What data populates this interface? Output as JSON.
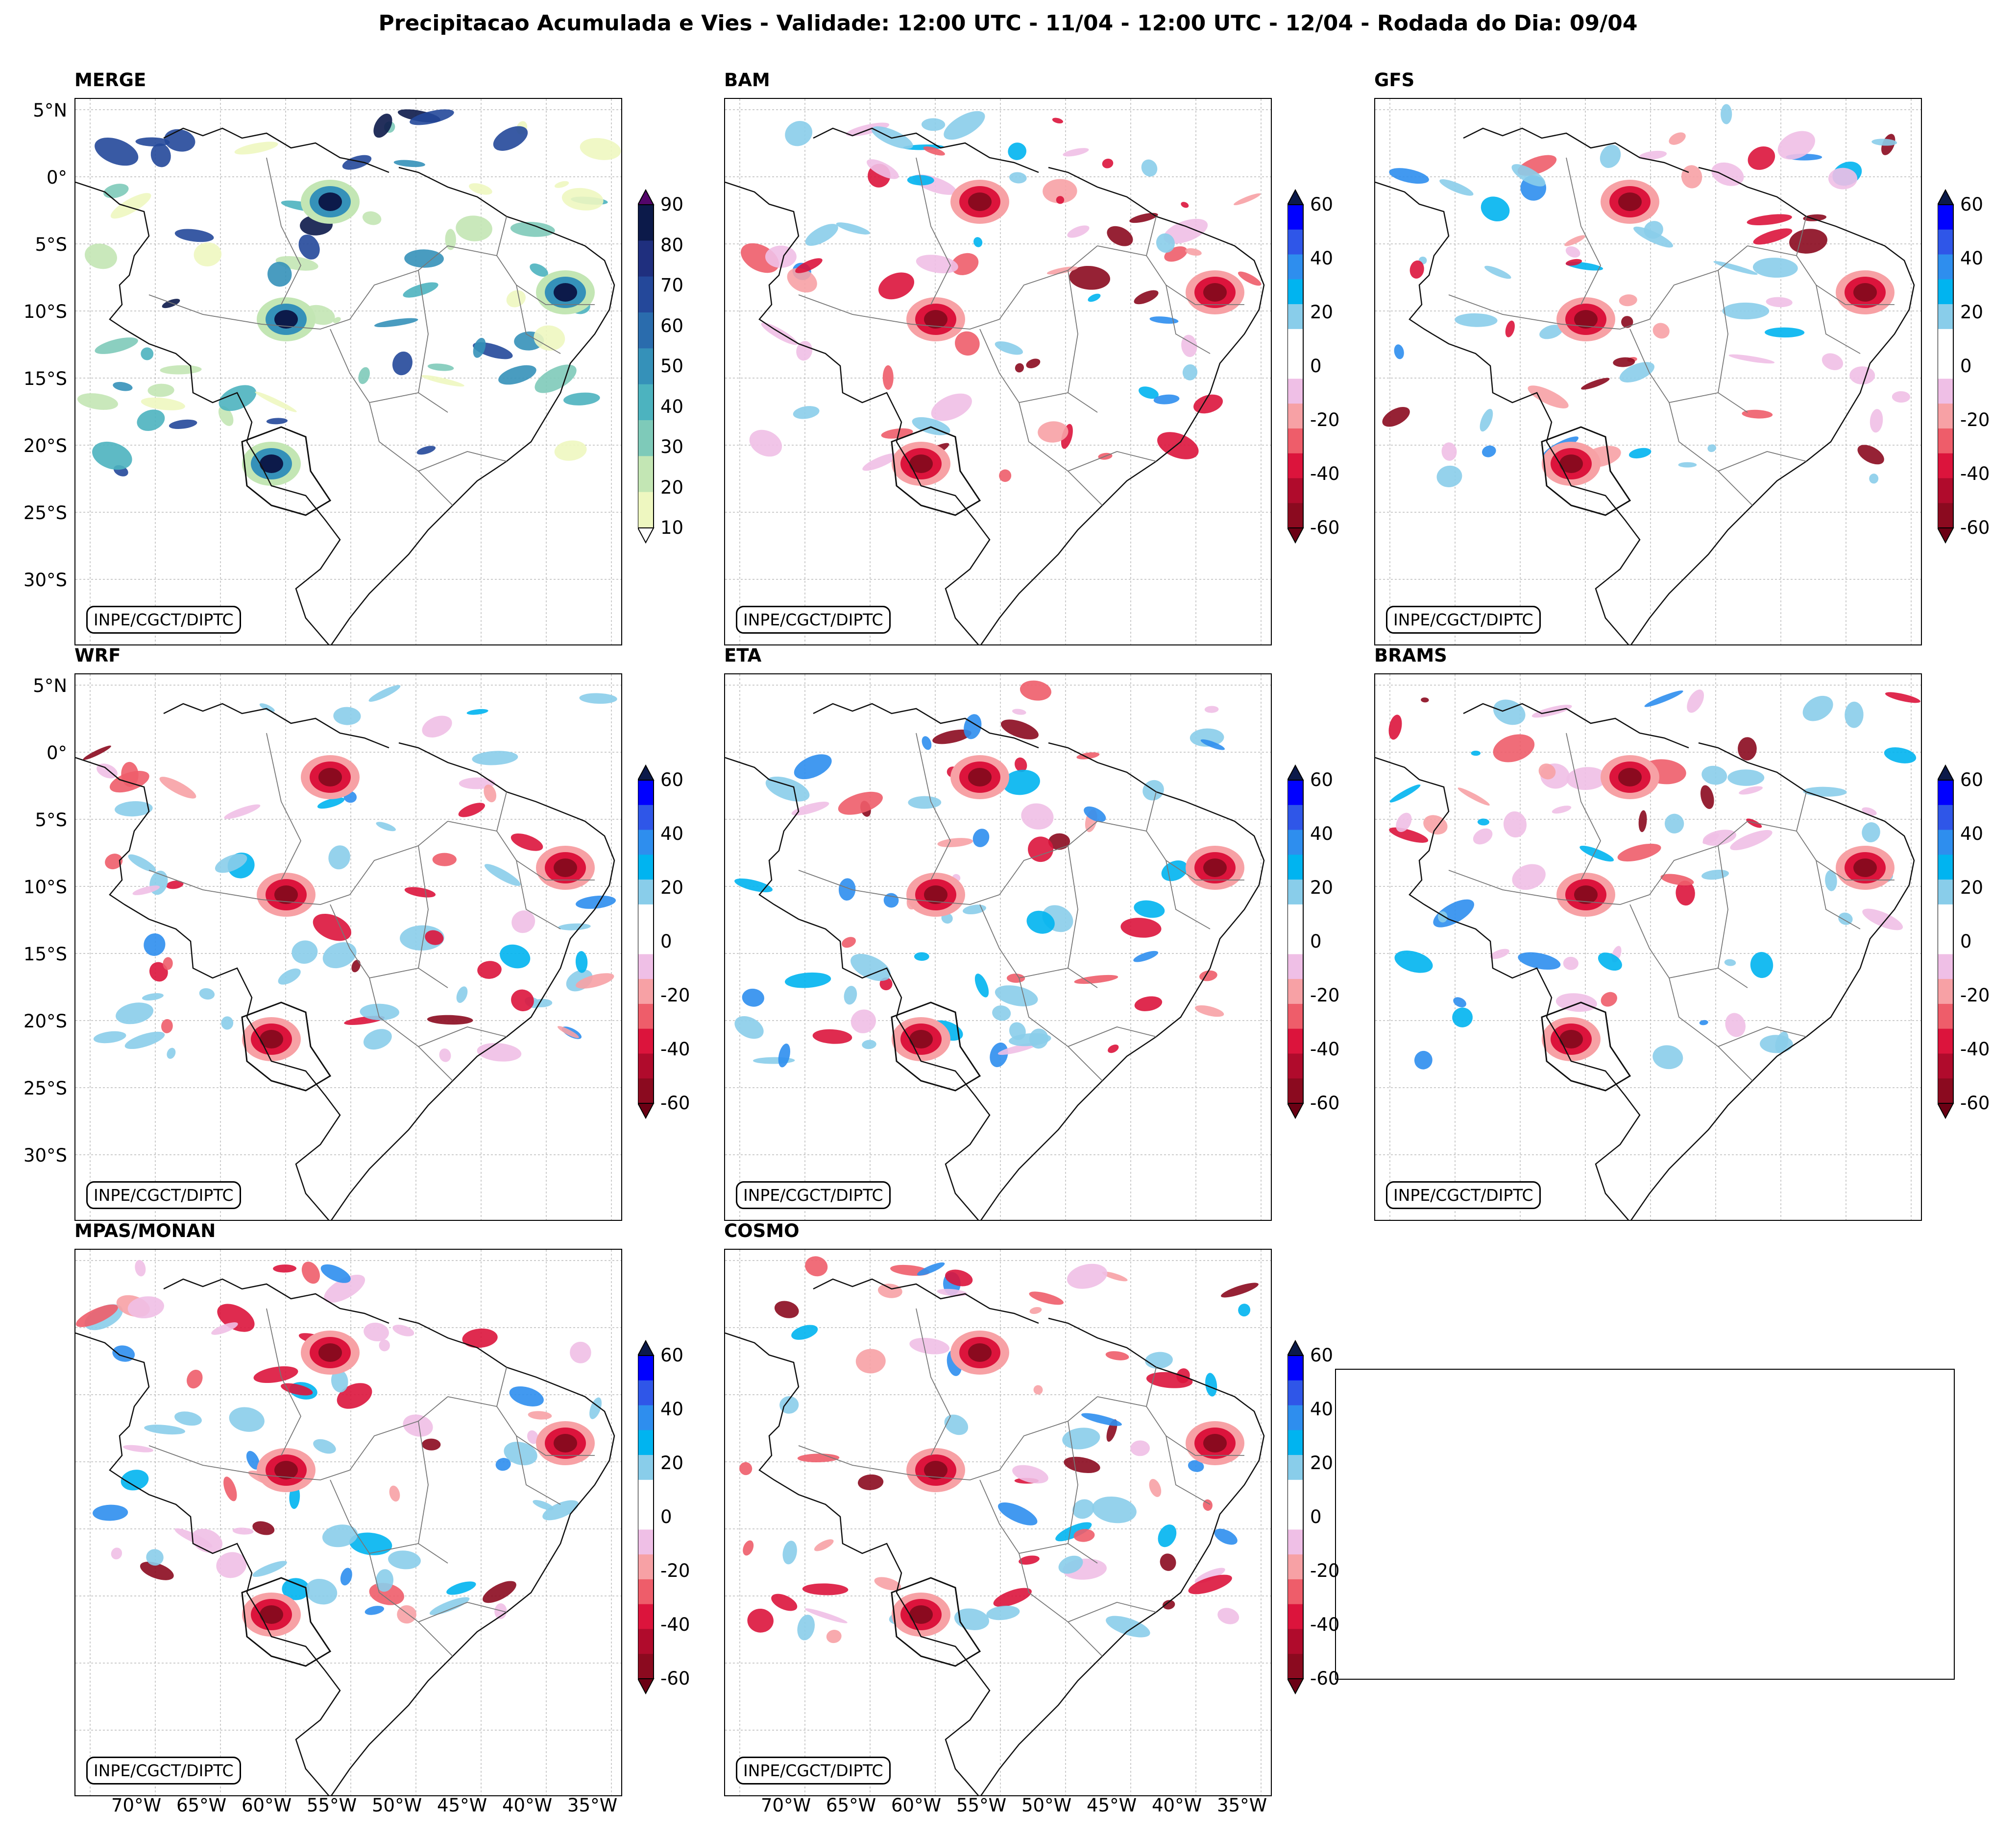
{
  "title": "Precipitacao Acumulada e Vies - Validade: 12:00 UTC - 11/04 - 12:00 UTC - 12/04 - Rodada do Dia: 09/04",
  "credit": "INPE/CGCT/DIPTC",
  "lat_labels": [
    "5°N",
    "0°",
    "5°S",
    "10°S",
    "15°S",
    "20°S",
    "25°S",
    "30°S"
  ],
  "lon_labels": [
    "70°W",
    "65°W",
    "60°W",
    "55°W",
    "50°W",
    "45°W",
    "40°W",
    "35°W"
  ],
  "colorbars": {
    "precip": {
      "ticks": [
        "90",
        "80",
        "70",
        "60",
        "50",
        "40",
        "30",
        "20",
        "10"
      ],
      "colors": [
        "#0c1a4a",
        "#1f2f7e",
        "#24489a",
        "#2a6cad",
        "#3591b9",
        "#4cb3bf",
        "#7ecab9",
        "#c3e6b4",
        "#eef7c0"
      ],
      "extend_max": "#54066a",
      "extend_min": "#ffffff"
    },
    "bias": {
      "ticks": [
        "60",
        "40",
        "20",
        "0",
        "-20",
        "-40",
        "-60"
      ],
      "colors": [
        "#0000ff",
        "#2f56e8",
        "#2e8eee",
        "#00b4f0",
        "#89cdea",
        "#ffffff",
        "#ffffff",
        "#efbfe6",
        "#f7a1a5",
        "#ee5d6a",
        "#dc143c",
        "#b00b2c",
        "#8b0a1f"
      ],
      "extend_max": "#0c1a4a",
      "extend_min": "#6b0014"
    }
  },
  "panels": [
    {
      "id": "merge",
      "title": "MERGE",
      "colorbar": "precip"
    },
    {
      "id": "bam",
      "title": "BAM",
      "colorbar": "bias"
    },
    {
      "id": "gfs",
      "title": "GFS",
      "colorbar": "bias"
    },
    {
      "id": "wrf",
      "title": "WRF",
      "colorbar": "bias"
    },
    {
      "id": "eta",
      "title": "ETA",
      "colorbar": "bias"
    },
    {
      "id": "brams",
      "title": "BRAMS",
      "colorbar": "bias"
    },
    {
      "id": "mpas",
      "title": "MPAS/MONAN",
      "colorbar": "bias"
    },
    {
      "id": "cosmo",
      "title": "COSMO",
      "colorbar": "bias"
    }
  ]
}
